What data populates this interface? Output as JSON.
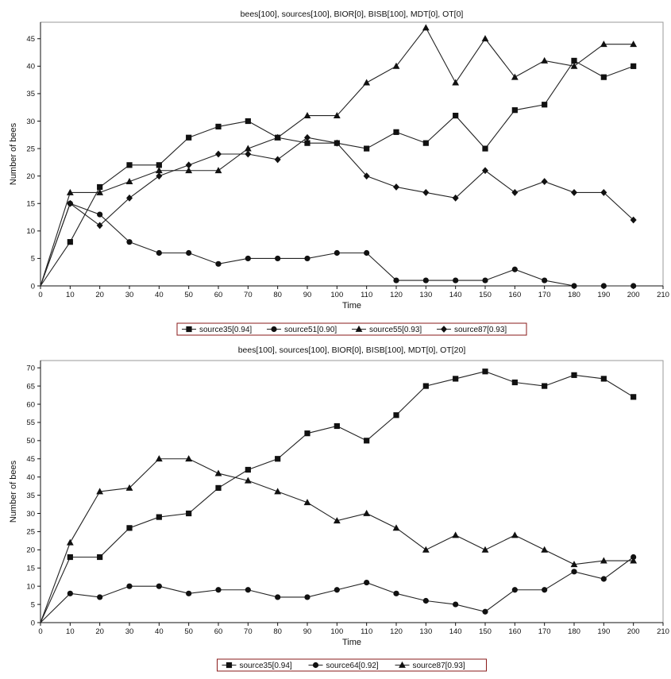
{
  "chart_data": [
    {
      "type": "line",
      "title": "bees[100], sources[100], BIOR[0], BISB[100], MDT[0], OT[0]",
      "xlabel": "Time",
      "ylabel": "Number of bees",
      "xlim": [
        0,
        210
      ],
      "ylim": [
        0,
        48
      ],
      "xticks": [
        0,
        10,
        20,
        30,
        40,
        50,
        60,
        70,
        80,
        90,
        100,
        110,
        120,
        130,
        140,
        150,
        160,
        170,
        180,
        190,
        200,
        210
      ],
      "yticks": [
        0,
        5,
        10,
        15,
        20,
        25,
        30,
        35,
        40,
        45
      ],
      "legend_position": "bottom",
      "x": [
        0,
        10,
        20,
        30,
        40,
        50,
        60,
        70,
        80,
        90,
        100,
        110,
        120,
        130,
        140,
        150,
        160,
        170,
        180,
        190,
        200
      ],
      "series": [
        {
          "name": "source35[0.94]",
          "marker": "square",
          "values": [
            0,
            8,
            18,
            22,
            22,
            27,
            29,
            30,
            27,
            26,
            26,
            25,
            28,
            26,
            31,
            25,
            32,
            33,
            41,
            38,
            40
          ]
        },
        {
          "name": "source51[0.90]",
          "marker": "circle",
          "values": [
            0,
            15,
            13,
            8,
            6,
            6,
            4,
            5,
            5,
            5,
            6,
            6,
            1,
            1,
            1,
            1,
            3,
            1,
            0,
            0,
            0
          ]
        },
        {
          "name": "source55[0.93]",
          "marker": "triangle",
          "values": [
            0,
            17,
            17,
            19,
            21,
            21,
            21,
            25,
            27,
            31,
            31,
            37,
            40,
            47,
            37,
            45,
            38,
            41,
            40,
            44,
            44
          ]
        },
        {
          "name": "source87[0.93]",
          "marker": "diamond",
          "values": [
            0,
            15,
            11,
            16,
            20,
            22,
            24,
            24,
            23,
            27,
            26,
            20,
            18,
            17,
            16,
            21,
            17,
            19,
            17,
            17,
            12
          ]
        }
      ]
    },
    {
      "type": "line",
      "title": "bees[100], sources[100], BIOR[0], BISB[100], MDT[0], OT[20]",
      "xlabel": "Time",
      "ylabel": "Number of bees",
      "xlim": [
        0,
        210
      ],
      "ylim": [
        0,
        72
      ],
      "xticks": [
        0,
        10,
        20,
        30,
        40,
        50,
        60,
        70,
        80,
        90,
        100,
        110,
        120,
        130,
        140,
        150,
        160,
        170,
        180,
        190,
        200,
        210
      ],
      "yticks": [
        0,
        5,
        10,
        15,
        20,
        25,
        30,
        35,
        40,
        45,
        50,
        55,
        60,
        65,
        70
      ],
      "legend_position": "bottom",
      "x": [
        0,
        10,
        20,
        30,
        40,
        50,
        60,
        70,
        80,
        90,
        100,
        110,
        120,
        130,
        140,
        150,
        160,
        170,
        180,
        190,
        200
      ],
      "series": [
        {
          "name": "source35[0.94]",
          "marker": "square",
          "values": [
            0,
            18,
            18,
            26,
            29,
            30,
            37,
            42,
            45,
            52,
            54,
            50,
            57,
            65,
            67,
            69,
            66,
            65,
            68,
            67,
            62
          ]
        },
        {
          "name": "source64[0.92]",
          "marker": "circle",
          "values": [
            0,
            8,
            7,
            10,
            10,
            8,
            9,
            9,
            7,
            7,
            9,
            11,
            8,
            6,
            5,
            3,
            9,
            9,
            14,
            12,
            18
          ]
        },
        {
          "name": "source87[0.93]",
          "marker": "triangle",
          "values": [
            0,
            22,
            36,
            37,
            45,
            45,
            41,
            39,
            36,
            33,
            28,
            30,
            26,
            20,
            24,
            20,
            24,
            20,
            16,
            17,
            17
          ]
        }
      ]
    }
  ]
}
